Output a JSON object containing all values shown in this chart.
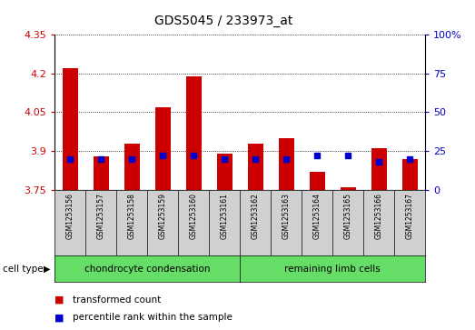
{
  "title": "GDS5045 / 233973_at",
  "samples": [
    "GSM1253156",
    "GSM1253157",
    "GSM1253158",
    "GSM1253159",
    "GSM1253160",
    "GSM1253161",
    "GSM1253162",
    "GSM1253163",
    "GSM1253164",
    "GSM1253165",
    "GSM1253166",
    "GSM1253167"
  ],
  "transformed_count": [
    4.22,
    3.88,
    3.93,
    4.07,
    4.19,
    3.89,
    3.93,
    3.95,
    3.82,
    3.76,
    3.91,
    3.87
  ],
  "percentile_rank": [
    20,
    20,
    20,
    22,
    22,
    20,
    20,
    20,
    22,
    22,
    18,
    20
  ],
  "ylim_left": [
    3.75,
    4.35
  ],
  "yticks_left": [
    3.75,
    3.9,
    4.05,
    4.2,
    4.35
  ],
  "ylim_right": [
    0,
    100
  ],
  "yticks_right": [
    0,
    25,
    50,
    75,
    100
  ],
  "ytick_labels_right": [
    "0",
    "25",
    "50",
    "75",
    "100%"
  ],
  "bar_color": "#cc0000",
  "dot_color": "#0000cc",
  "baseline": 3.75,
  "background_color": "#ffffff",
  "left_tick_color": "#cc0000",
  "right_tick_color": "#0000cc",
  "group1_label": "chondrocyte condensation",
  "group1_count": 6,
  "group2_label": "remaining limb cells",
  "group2_count": 6,
  "group_color": "#66dd66",
  "sample_box_color": "#d0d0d0",
  "cell_type_label": "cell type",
  "legend_bar_label": "transformed count",
  "legend_dot_label": "percentile rank within the sample"
}
